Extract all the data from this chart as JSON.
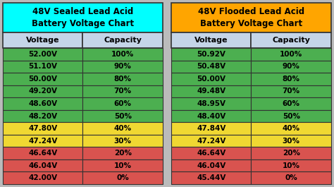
{
  "left_title": "48V Sealed Lead Acid\nBattery Voltage Chart",
  "right_title": "48V Flooded Lead Acid\nBattery Voltage Chart",
  "left_title_bg": "#00FFFF",
  "right_title_bg": "#FFA500",
  "header_bg": "#C5D5E8",
  "col_header": [
    "Voltage",
    "Capacity"
  ],
  "left_rows": [
    [
      "52.00V",
      "100%"
    ],
    [
      "51.10V",
      "90%"
    ],
    [
      "50.00V",
      "80%"
    ],
    [
      "49.20V",
      "70%"
    ],
    [
      "48.60V",
      "60%"
    ],
    [
      "48.20V",
      "50%"
    ],
    [
      "47.80V",
      "40%"
    ],
    [
      "47.24V",
      "30%"
    ],
    [
      "46.64V",
      "20%"
    ],
    [
      "46.04V",
      "10%"
    ],
    [
      "42.00V",
      "0%"
    ]
  ],
  "right_rows": [
    [
      "50.92V",
      "100%"
    ],
    [
      "50.48V",
      "90%"
    ],
    [
      "50.00V",
      "80%"
    ],
    [
      "49.48V",
      "70%"
    ],
    [
      "48.95V",
      "60%"
    ],
    [
      "48.40V",
      "50%"
    ],
    [
      "47.84V",
      "40%"
    ],
    [
      "47.24V",
      "30%"
    ],
    [
      "46.64V",
      "20%"
    ],
    [
      "46.04V",
      "10%"
    ],
    [
      "45.44V",
      "0%"
    ]
  ],
  "row_colors": [
    "#4CAF50",
    "#4CAF50",
    "#4CAF50",
    "#4CAF50",
    "#4CAF50",
    "#4CAF50",
    "#F0D832",
    "#F0D832",
    "#D9534F",
    "#D9534F",
    "#D9534F"
  ],
  "border_color": "#333333",
  "fig_bg": "#BBBBBB",
  "title_fontsize": 8.5,
  "header_fontsize": 8.0,
  "cell_fontsize": 7.5
}
